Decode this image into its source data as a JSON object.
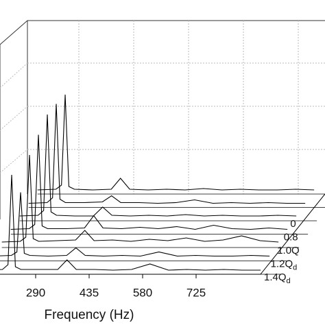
{
  "chart_data": {
    "type": "waterfall",
    "x_label": "Frequency (Hz)",
    "x": [
      150,
      200,
      215,
      225,
      235,
      250,
      300,
      350,
      375,
      400,
      450,
      500,
      550,
      600,
      650,
      700,
      750,
      800,
      850,
      900
    ],
    "xlim": [
      150,
      900
    ],
    "xticks": [
      290,
      435,
      580,
      725
    ],
    "zlim": [
      0,
      150
    ],
    "color": "#000000",
    "series": [
      {
        "values": [
          1,
          2,
          8,
          140,
          6,
          2,
          1,
          2,
          18,
          2,
          1,
          2,
          1,
          3,
          1,
          2,
          1,
          1,
          2,
          1
        ]
      },
      {
        "values": [
          1,
          2,
          9,
          146,
          7,
          2,
          2,
          3,
          12,
          2,
          2,
          1,
          2,
          6,
          1,
          2,
          1,
          2,
          1,
          1
        ]
      },
      {
        "name": "0",
        "values": [
          2,
          3,
          10,
          150,
          8,
          3,
          2,
          2,
          15,
          3,
          2,
          3,
          2,
          4,
          2,
          3,
          2,
          2,
          3,
          2
        ]
      },
      {
        "name": "0.8",
        "values": [
          2,
          3,
          9,
          140,
          7,
          3,
          3,
          4,
          22,
          4,
          3,
          5,
          3,
          6,
          2,
          8,
          3,
          2,
          4,
          2
        ]
      },
      {
        "name": "1.0Q",
        "values": [
          3,
          4,
          10,
          130,
          8,
          4,
          5,
          6,
          20,
          5,
          6,
          4,
          7,
          5,
          9,
          4,
          6,
          12,
          5,
          3
        ]
      },
      {
        "name": "1.2Q",
        "name_sub": "d",
        "values": [
          2,
          3,
          8,
          95,
          6,
          3,
          2,
          3,
          14,
          3,
          2,
          3,
          2,
          8,
          2,
          3,
          2,
          2,
          3,
          2
        ]
      },
      {
        "name": "1.4Q",
        "name_sub": "d",
        "values": [
          1,
          2,
          9,
          140,
          6,
          2,
          2,
          2,
          16,
          2,
          2,
          1,
          2,
          10,
          1,
          2,
          1,
          2,
          1,
          1
        ]
      }
    ]
  }
}
